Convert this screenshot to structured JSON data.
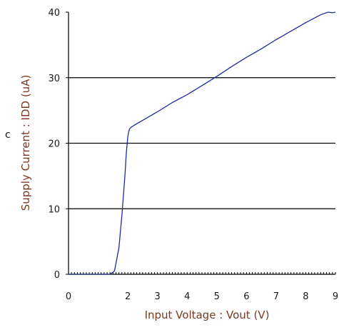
{
  "chart_data": {
    "type": "line",
    "title": "",
    "xlabel": "Input Voltage : Vout (V)",
    "ylabel": "Supply Current : IDD (uA)",
    "xlim": [
      0,
      9
    ],
    "ylim": [
      0,
      40
    ],
    "xticks": [
      0,
      2,
      3,
      4,
      5,
      6,
      7,
      8,
      9
    ],
    "yticks": [
      0,
      10,
      20,
      30,
      40
    ],
    "grid": {
      "horizontal": [
        10,
        20,
        30
      ],
      "vertical": false
    },
    "line_color": "#1f2a9e",
    "grid_color": "#000000",
    "series": [
      {
        "x": [
          0,
          1.4,
          1.55,
          1.7,
          1.8,
          1.9,
          1.95,
          2.0,
          2.03,
          2.06,
          2.1,
          2.2,
          2.5,
          3.0,
          3.5,
          4.0,
          4.5,
          5.0,
          5.5,
          6.0,
          6.5,
          7.0,
          7.5,
          8.0,
          8.5,
          8.75,
          8.9,
          9.0
        ],
        "values": [
          0,
          0,
          0.5,
          4,
          9,
          15,
          18.5,
          21,
          21.8,
          22.2,
          22.4,
          22.7,
          23.5,
          24.8,
          26.2,
          27.4,
          28.8,
          30.2,
          31.7,
          33.1,
          34.4,
          35.8,
          37.1,
          38.4,
          39.6,
          40.0,
          39.9,
          40.0
        ]
      }
    ]
  },
  "stray_glyph": "c"
}
